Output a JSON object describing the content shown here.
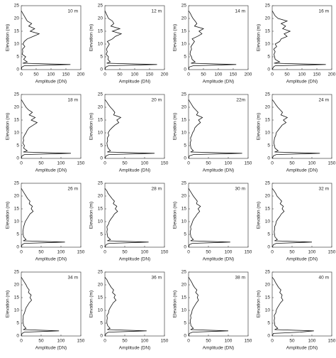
{
  "chart_data": [
    {
      "type": "line",
      "annotation": "10 m",
      "xlabel": "Amplitude (DN)",
      "ylabel": "Elevation (m)",
      "xlim": [
        0,
        200
      ],
      "xticks": [
        0,
        50,
        100,
        150,
        200
      ],
      "ylim": [
        0,
        25
      ],
      "yticks": [
        0,
        5,
        10,
        15,
        20,
        25
      ],
      "color": "#111",
      "x": [
        0,
        2,
        10,
        165,
        5,
        20,
        8,
        15,
        3,
        5,
        4,
        12,
        6,
        10,
        20,
        40,
        60,
        30,
        45,
        25,
        35,
        20,
        15,
        10,
        5,
        0
      ],
      "values": [
        0,
        1,
        1.5,
        2,
        2.5,
        3,
        4,
        5,
        6,
        7,
        8,
        9,
        10,
        11,
        12,
        13,
        14,
        15,
        16,
        17,
        18,
        19,
        20,
        21,
        22,
        23
      ]
    },
    {
      "type": "line",
      "annotation": "12 m",
      "xlabel": "Amplitude (DN)",
      "ylabel": "Elevation (m)",
      "xlim": [
        0,
        200
      ],
      "xticks": [
        0,
        50,
        100,
        150,
        200
      ],
      "ylim": [
        0,
        25
      ],
      "yticks": [
        0,
        5,
        10,
        15,
        20,
        25
      ],
      "color": "#111",
      "x": [
        0,
        3,
        12,
        175,
        6,
        18,
        10,
        12,
        4,
        8,
        5,
        10,
        15,
        8,
        25,
        35,
        55,
        25,
        50,
        20,
        30,
        25,
        12,
        8,
        4,
        0
      ],
      "values": [
        0,
        1,
        1.5,
        2,
        2.5,
        3,
        4,
        5,
        6,
        7,
        8,
        9,
        10,
        11,
        12,
        13,
        14,
        15,
        16,
        17,
        18,
        19,
        20,
        21,
        22,
        23
      ]
    },
    {
      "type": "line",
      "annotation": "14 m",
      "xlabel": "Amplitude (DN)",
      "ylabel": "Elevation (m)",
      "xlim": [
        0,
        200
      ],
      "xticks": [
        0,
        50,
        100,
        150,
        200
      ],
      "ylim": [
        0,
        25
      ],
      "yticks": [
        0,
        5,
        10,
        15,
        20,
        25
      ],
      "color": "#111",
      "x": [
        0,
        2,
        15,
        160,
        8,
        22,
        12,
        10,
        5,
        6,
        10,
        8,
        14,
        20,
        12,
        30,
        45,
        35,
        50,
        20,
        28,
        22,
        15,
        10,
        6,
        0
      ],
      "values": [
        0,
        1,
        1.5,
        2,
        2.5,
        3,
        4,
        5,
        6,
        7,
        8,
        9,
        10,
        11,
        12,
        13,
        14,
        15,
        16,
        17,
        18,
        19,
        20,
        21,
        22,
        23
      ]
    },
    {
      "type": "line",
      "annotation": "16 m",
      "xlabel": "Amplitude (DN)",
      "ylabel": "Elevation (m)",
      "xlim": [
        0,
        200
      ],
      "xticks": [
        0,
        50,
        100,
        150,
        200
      ],
      "ylim": [
        0,
        25
      ],
      "yticks": [
        0,
        5,
        10,
        15,
        20,
        25
      ],
      "color": "#111",
      "x": [
        0,
        4,
        10,
        180,
        6,
        25,
        10,
        8,
        6,
        10,
        5,
        15,
        10,
        25,
        30,
        50,
        40,
        60,
        35,
        45,
        30,
        50,
        20,
        10,
        5,
        0
      ],
      "values": [
        0,
        1,
        1.5,
        2,
        2.5,
        3,
        4,
        5,
        6,
        7,
        8,
        9,
        10,
        11,
        12,
        13,
        14,
        15,
        16,
        17,
        18,
        19,
        20,
        21,
        22,
        23
      ]
    },
    {
      "type": "line",
      "annotation": "18 m",
      "xlabel": "Amplitude (DN)",
      "ylabel": "Elevation (m)",
      "xlim": [
        0,
        150
      ],
      "xticks": [
        0,
        50,
        100,
        150
      ],
      "ylim": [
        0,
        25
      ],
      "yticks": [
        0,
        5,
        10,
        15,
        20,
        25
      ],
      "color": "#111",
      "x": [
        0,
        2,
        8,
        125,
        5,
        15,
        6,
        8,
        4,
        6,
        5,
        8,
        12,
        15,
        20,
        30,
        40,
        25,
        35,
        20,
        28,
        18,
        12,
        8,
        4,
        0
      ],
      "values": [
        0,
        1,
        1.5,
        2,
        2.5,
        3,
        4,
        5,
        6,
        7,
        8,
        9,
        10,
        11,
        12,
        13,
        14,
        15,
        16,
        17,
        18,
        19,
        20,
        21,
        22,
        23
      ]
    },
    {
      "type": "line",
      "annotation": "20 m",
      "xlabel": "Amplitude (DN)",
      "ylabel": "Elevation (m)",
      "xlim": [
        0,
        150
      ],
      "xticks": [
        0,
        50,
        100,
        150
      ],
      "ylim": [
        0,
        25
      ],
      "yticks": [
        0,
        5,
        10,
        15,
        20,
        25
      ],
      "color": "#111",
      "x": [
        0,
        3,
        10,
        125,
        6,
        14,
        8,
        6,
        5,
        7,
        6,
        10,
        8,
        12,
        18,
        25,
        35,
        30,
        40,
        22,
        25,
        20,
        14,
        9,
        5,
        0
      ],
      "values": [
        0,
        1,
        1.5,
        2,
        2.5,
        3,
        4,
        5,
        6,
        7,
        8,
        9,
        10,
        11,
        12,
        13,
        14,
        15,
        16,
        17,
        18,
        19,
        20,
        21,
        22,
        23
      ]
    },
    {
      "type": "line",
      "annotation": "22m",
      "xlabel": "Amplitude (DN)",
      "ylabel": "Elevation (m)",
      "xlim": [
        0,
        150
      ],
      "xticks": [
        0,
        50,
        100,
        150
      ],
      "ylim": [
        0,
        25
      ],
      "yticks": [
        0,
        5,
        10,
        15,
        20,
        25
      ],
      "color": "#111",
      "x": [
        0,
        2,
        12,
        135,
        5,
        12,
        6,
        5,
        4,
        6,
        5,
        8,
        10,
        14,
        16,
        22,
        30,
        25,
        35,
        20,
        24,
        18,
        12,
        8,
        4,
        0
      ],
      "values": [
        0,
        1,
        1.5,
        2,
        2.5,
        3,
        4,
        5,
        6,
        7,
        8,
        9,
        10,
        11,
        12,
        13,
        14,
        15,
        16,
        17,
        18,
        19,
        20,
        21,
        22,
        23
      ]
    },
    {
      "type": "line",
      "annotation": "24 m",
      "xlabel": "Amplitude (DN)",
      "ylabel": "Elevation (m)",
      "xlim": [
        0,
        150
      ],
      "xticks": [
        0,
        50,
        100,
        150
      ],
      "ylim": [
        0,
        25
      ],
      "yticks": [
        0,
        5,
        10,
        15,
        20,
        25
      ],
      "color": "#111",
      "x": [
        0,
        3,
        10,
        120,
        6,
        15,
        7,
        6,
        4,
        5,
        6,
        9,
        10,
        15,
        20,
        25,
        35,
        28,
        38,
        22,
        26,
        20,
        14,
        9,
        5,
        0
      ],
      "values": [
        0,
        1,
        1.5,
        2,
        2.5,
        3,
        4,
        5,
        6,
        7,
        8,
        9,
        10,
        11,
        12,
        13,
        14,
        15,
        16,
        17,
        18,
        19,
        20,
        21,
        22,
        23
      ]
    },
    {
      "type": "line",
      "annotation": "26 m",
      "xlabel": "Amplitude (DN)",
      "ylabel": "Elevation (m)",
      "xlim": [
        0,
        150
      ],
      "xticks": [
        0,
        50,
        100,
        150
      ],
      "ylim": [
        0,
        25
      ],
      "yticks": [
        0,
        5,
        10,
        15,
        20,
        25
      ],
      "color": "#111",
      "x": [
        0,
        2,
        8,
        110,
        5,
        12,
        6,
        5,
        4,
        5,
        6,
        8,
        10,
        14,
        18,
        22,
        30,
        25,
        28,
        20,
        22,
        16,
        12,
        8,
        4,
        0
      ],
      "values": [
        0,
        1,
        1.5,
        2,
        2.5,
        3,
        4,
        5,
        6,
        7,
        8,
        9,
        10,
        11,
        12,
        13,
        14,
        15,
        16,
        17,
        18,
        19,
        20,
        21,
        22,
        23
      ]
    },
    {
      "type": "line",
      "annotation": "28 m",
      "xlabel": "Amplitude (DN)",
      "ylabel": "Elevation (m)",
      "xlim": [
        0,
        150
      ],
      "xticks": [
        0,
        50,
        100,
        150
      ],
      "ylim": [
        0,
        25
      ],
      "yticks": [
        0,
        5,
        10,
        15,
        20,
        25
      ],
      "color": "#111",
      "x": [
        0,
        3,
        10,
        110,
        6,
        14,
        7,
        6,
        5,
        6,
        5,
        9,
        11,
        15,
        20,
        24,
        32,
        26,
        30,
        21,
        24,
        18,
        13,
        8,
        5,
        0
      ],
      "values": [
        0,
        1,
        1.5,
        2,
        2.5,
        3,
        4,
        5,
        6,
        7,
        8,
        9,
        10,
        11,
        12,
        13,
        14,
        15,
        16,
        17,
        18,
        19,
        20,
        21,
        22,
        23
      ]
    },
    {
      "type": "line",
      "annotation": "30 m",
      "xlabel": "Amplitude (DN)",
      "ylabel": "Elevation (m)",
      "xlim": [
        0,
        150
      ],
      "xticks": [
        0,
        50,
        100,
        150
      ],
      "ylim": [
        0,
        25
      ],
      "yticks": [
        0,
        5,
        10,
        15,
        20,
        25
      ],
      "color": "#111",
      "x": [
        0,
        2,
        9,
        105,
        5,
        12,
        6,
        5,
        4,
        6,
        5,
        8,
        10,
        13,
        18,
        22,
        28,
        24,
        30,
        20,
        22,
        17,
        12,
        8,
        4,
        0
      ],
      "values": [
        0,
        1,
        1.5,
        2,
        2.5,
        3,
        4,
        5,
        6,
        7,
        8,
        9,
        10,
        11,
        12,
        13,
        14,
        15,
        16,
        17,
        18,
        19,
        20,
        21,
        22,
        23
      ]
    },
    {
      "type": "line",
      "annotation": "32 m",
      "xlabel": "Amplitude (DN)",
      "ylabel": "Elevation (m)",
      "xlim": [
        0,
        150
      ],
      "xticks": [
        0,
        50,
        100,
        150
      ],
      "ylim": [
        0,
        25
      ],
      "yticks": [
        0,
        5,
        10,
        15,
        20,
        25
      ],
      "color": "#111",
      "x": [
        0,
        3,
        10,
        100,
        6,
        13,
        7,
        6,
        5,
        6,
        6,
        9,
        10,
        14,
        19,
        23,
        30,
        25,
        28,
        20,
        24,
        18,
        12,
        9,
        5,
        0
      ],
      "values": [
        0,
        1,
        1.5,
        2,
        2.5,
        3,
        4,
        5,
        6,
        7,
        8,
        9,
        10,
        11,
        12,
        13,
        14,
        15,
        16,
        17,
        18,
        19,
        20,
        21,
        22,
        23
      ]
    },
    {
      "type": "line",
      "annotation": "34 m",
      "xlabel": "Amplitude (DN)",
      "ylabel": "Elevation (m)",
      "xlim": [
        0,
        150
      ],
      "xticks": [
        0,
        50,
        100,
        150
      ],
      "ylim": [
        0,
        25
      ],
      "yticks": [
        0,
        5,
        10,
        15,
        20,
        25
      ],
      "color": "#111",
      "x": [
        0,
        2,
        8,
        95,
        5,
        12,
        6,
        5,
        4,
        5,
        5,
        8,
        10,
        12,
        16,
        20,
        26,
        22,
        25,
        18,
        20,
        15,
        12,
        8,
        4,
        0
      ],
      "values": [
        0,
        1,
        1.5,
        2,
        2.5,
        3,
        4,
        5,
        6,
        7,
        8,
        9,
        10,
        11,
        12,
        13,
        14,
        15,
        16,
        17,
        18,
        19,
        20,
        21,
        22,
        23
      ]
    },
    {
      "type": "line",
      "annotation": "36 m",
      "xlabel": "Amplitude (DN)",
      "ylabel": "Elevation (m)",
      "xlim": [
        0,
        150
      ],
      "xticks": [
        0,
        50,
        100,
        150
      ],
      "ylim": [
        0,
        25
      ],
      "yticks": [
        0,
        5,
        10,
        15,
        20,
        25
      ],
      "color": "#111",
      "x": [
        0,
        3,
        9,
        105,
        6,
        13,
        7,
        5,
        5,
        6,
        5,
        9,
        10,
        13,
        17,
        21,
        28,
        23,
        26,
        19,
        22,
        16,
        12,
        8,
        5,
        0
      ],
      "values": [
        0,
        1,
        1.5,
        2,
        2.5,
        3,
        4,
        5,
        6,
        7,
        8,
        9,
        10,
        11,
        12,
        13,
        14,
        15,
        16,
        17,
        18,
        19,
        20,
        21,
        22,
        23
      ]
    },
    {
      "type": "line",
      "annotation": "38 m",
      "xlabel": "Amplitude (DN)",
      "ylabel": "Elevation (m)",
      "xlim": [
        0,
        150
      ],
      "xticks": [
        0,
        50,
        100,
        150
      ],
      "ylim": [
        0,
        25
      ],
      "yticks": [
        0,
        5,
        10,
        15,
        20,
        25
      ],
      "color": "#111",
      "x": [
        0,
        2,
        10,
        100,
        5,
        12,
        6,
        5,
        4,
        6,
        5,
        8,
        9,
        12,
        16,
        20,
        25,
        22,
        24,
        18,
        21,
        15,
        11,
        8,
        4,
        0
      ],
      "values": [
        0,
        1,
        1.5,
        2,
        2.5,
        3,
        4,
        5,
        6,
        7,
        8,
        9,
        10,
        11,
        12,
        13,
        14,
        15,
        16,
        17,
        18,
        19,
        20,
        21,
        22,
        23
      ]
    },
    {
      "type": "line",
      "annotation": "40 m",
      "xlabel": "Amplitude (DN)",
      "ylabel": "Elevation (m)",
      "xlim": [
        0,
        150
      ],
      "xticks": [
        0,
        50,
        100,
        150
      ],
      "ylim": [
        0,
        25
      ],
      "yticks": [
        0,
        5,
        10,
        15,
        20,
        25
      ],
      "color": "#111",
      "x": [
        0,
        3,
        70,
        105,
        6,
        14,
        7,
        6,
        5,
        6,
        5,
        9,
        10,
        13,
        17,
        21,
        27,
        23,
        25,
        19,
        22,
        16,
        12,
        8,
        5,
        0
      ],
      "values": [
        0,
        1,
        1.5,
        2,
        2.5,
        3,
        4,
        5,
        6,
        7,
        8,
        9,
        10,
        11,
        12,
        13,
        14,
        15,
        16,
        17,
        18,
        19,
        20,
        21,
        22,
        23
      ]
    }
  ]
}
